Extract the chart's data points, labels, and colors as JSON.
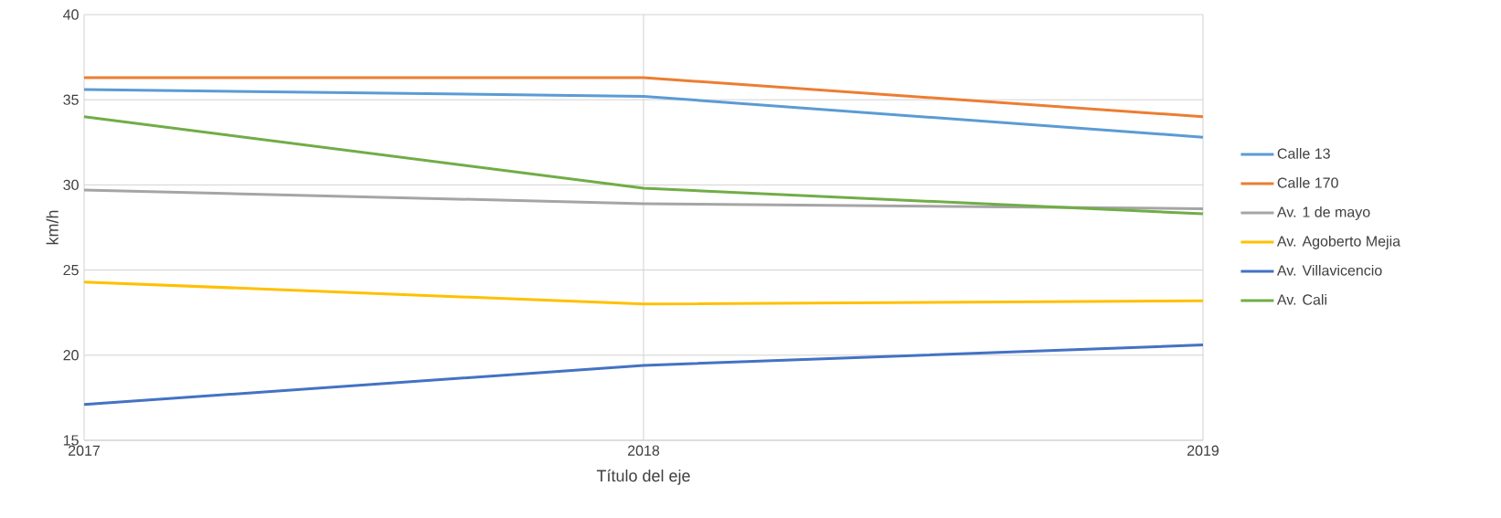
{
  "chart_data": {
    "type": "line",
    "xlabel": "Título del eje",
    "ylabel": "km/h",
    "x": [
      2017,
      2018,
      2019
    ],
    "xlim": [
      2017,
      2019
    ],
    "xticks": [
      2017,
      2018,
      2019
    ],
    "ylim": [
      15,
      40
    ],
    "yticks": [
      15,
      20,
      25,
      30,
      35,
      40
    ],
    "grid": true,
    "legend": "right",
    "marker": "none",
    "line_style": "solid",
    "series": [
      {
        "name": "Calle 13",
        "color": "#5b9bd5",
        "values": [
          35.6,
          35.2,
          32.8
        ]
      },
      {
        "name": "Calle 170",
        "color": "#ed7d31",
        "values": [
          36.3,
          36.3,
          34.0
        ]
      },
      {
        "name": "Av. 1 de mayo",
        "color": "#a5a5a5",
        "values": [
          29.7,
          28.9,
          28.6
        ]
      },
      {
        "name": "Av. Agoberto Mejia",
        "color": "#ffc000",
        "values": [
          24.3,
          23.0,
          23.2
        ]
      },
      {
        "name": "Av. Villavicencio",
        "color": "#4472c4",
        "values": [
          17.1,
          19.4,
          20.6
        ]
      },
      {
        "name": "Av. Cali",
        "color": "#70ad47",
        "values": [
          34.0,
          29.8,
          28.3
        ]
      }
    ]
  }
}
